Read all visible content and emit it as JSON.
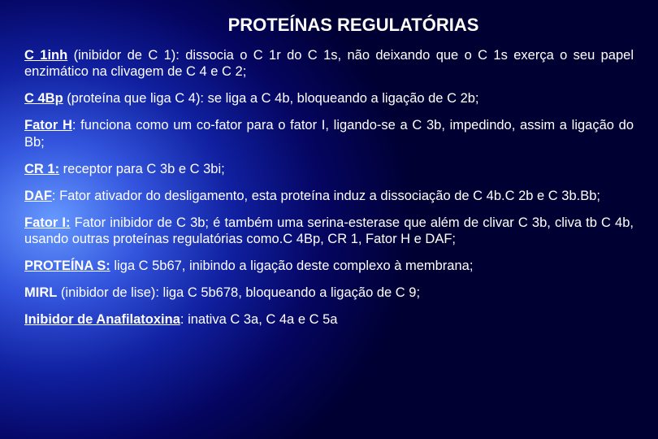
{
  "slide": {
    "title": "PROTEÍNAS REGULATÓRIAS",
    "p1_lead": "C 1inh",
    "p1_rest": " (inibidor de C 1): dissocia o C 1r do C 1s, não deixando que o C 1s exerça o seu papel enzimático na clivagem de C 4 e C 2;",
    "p2_lead": "C 4Bp",
    "p2_rest": " (proteína que liga C 4): se liga a C 4b, bloqueando a ligação de C 2b;",
    "p3_lead": "Fator H",
    "p3_rest": ": funciona como um co-fator para o fator I, ligando-se a C 3b, impedindo, assim a ligação do Bb;",
    "p4_lead": "CR 1:",
    "p4_rest": " receptor para C 3b e C 3bi;",
    "p5_lead": "DAF",
    "p5_rest": ": Fator ativador do desligamento, esta proteína induz a dissociação de C 4b.C 2b e C 3b.Bb;",
    "p6_lead": "Fator I:",
    "p6_rest": " Fator inibidor de C 3b; é também uma serina-esterase que além de clivar C 3b, cliva tb C 4b, usando outras proteínas regulatórias como.C 4Bp, CR 1, Fator H e DAF;",
    "p7_lead": "PROTEÍNA S:",
    "p7_rest": " liga C 5b67, inibindo a ligação deste complexo à membrana;",
    "p8_lead": "MIRL",
    "p8_rest": " (inibidor de lise): liga C 5b678, bloqueando a ligação de C 9;",
    "p9_lead": "Inibidor de Anafilatoxina",
    "p9_rest": ": inativa C 3a, C 4a e C 5a"
  },
  "style": {
    "background_gradient": "radial blue",
    "text_color": "#ffffff",
    "title_fontsize": 22,
    "body_fontsize": 16.5,
    "font_family": "Arial"
  }
}
